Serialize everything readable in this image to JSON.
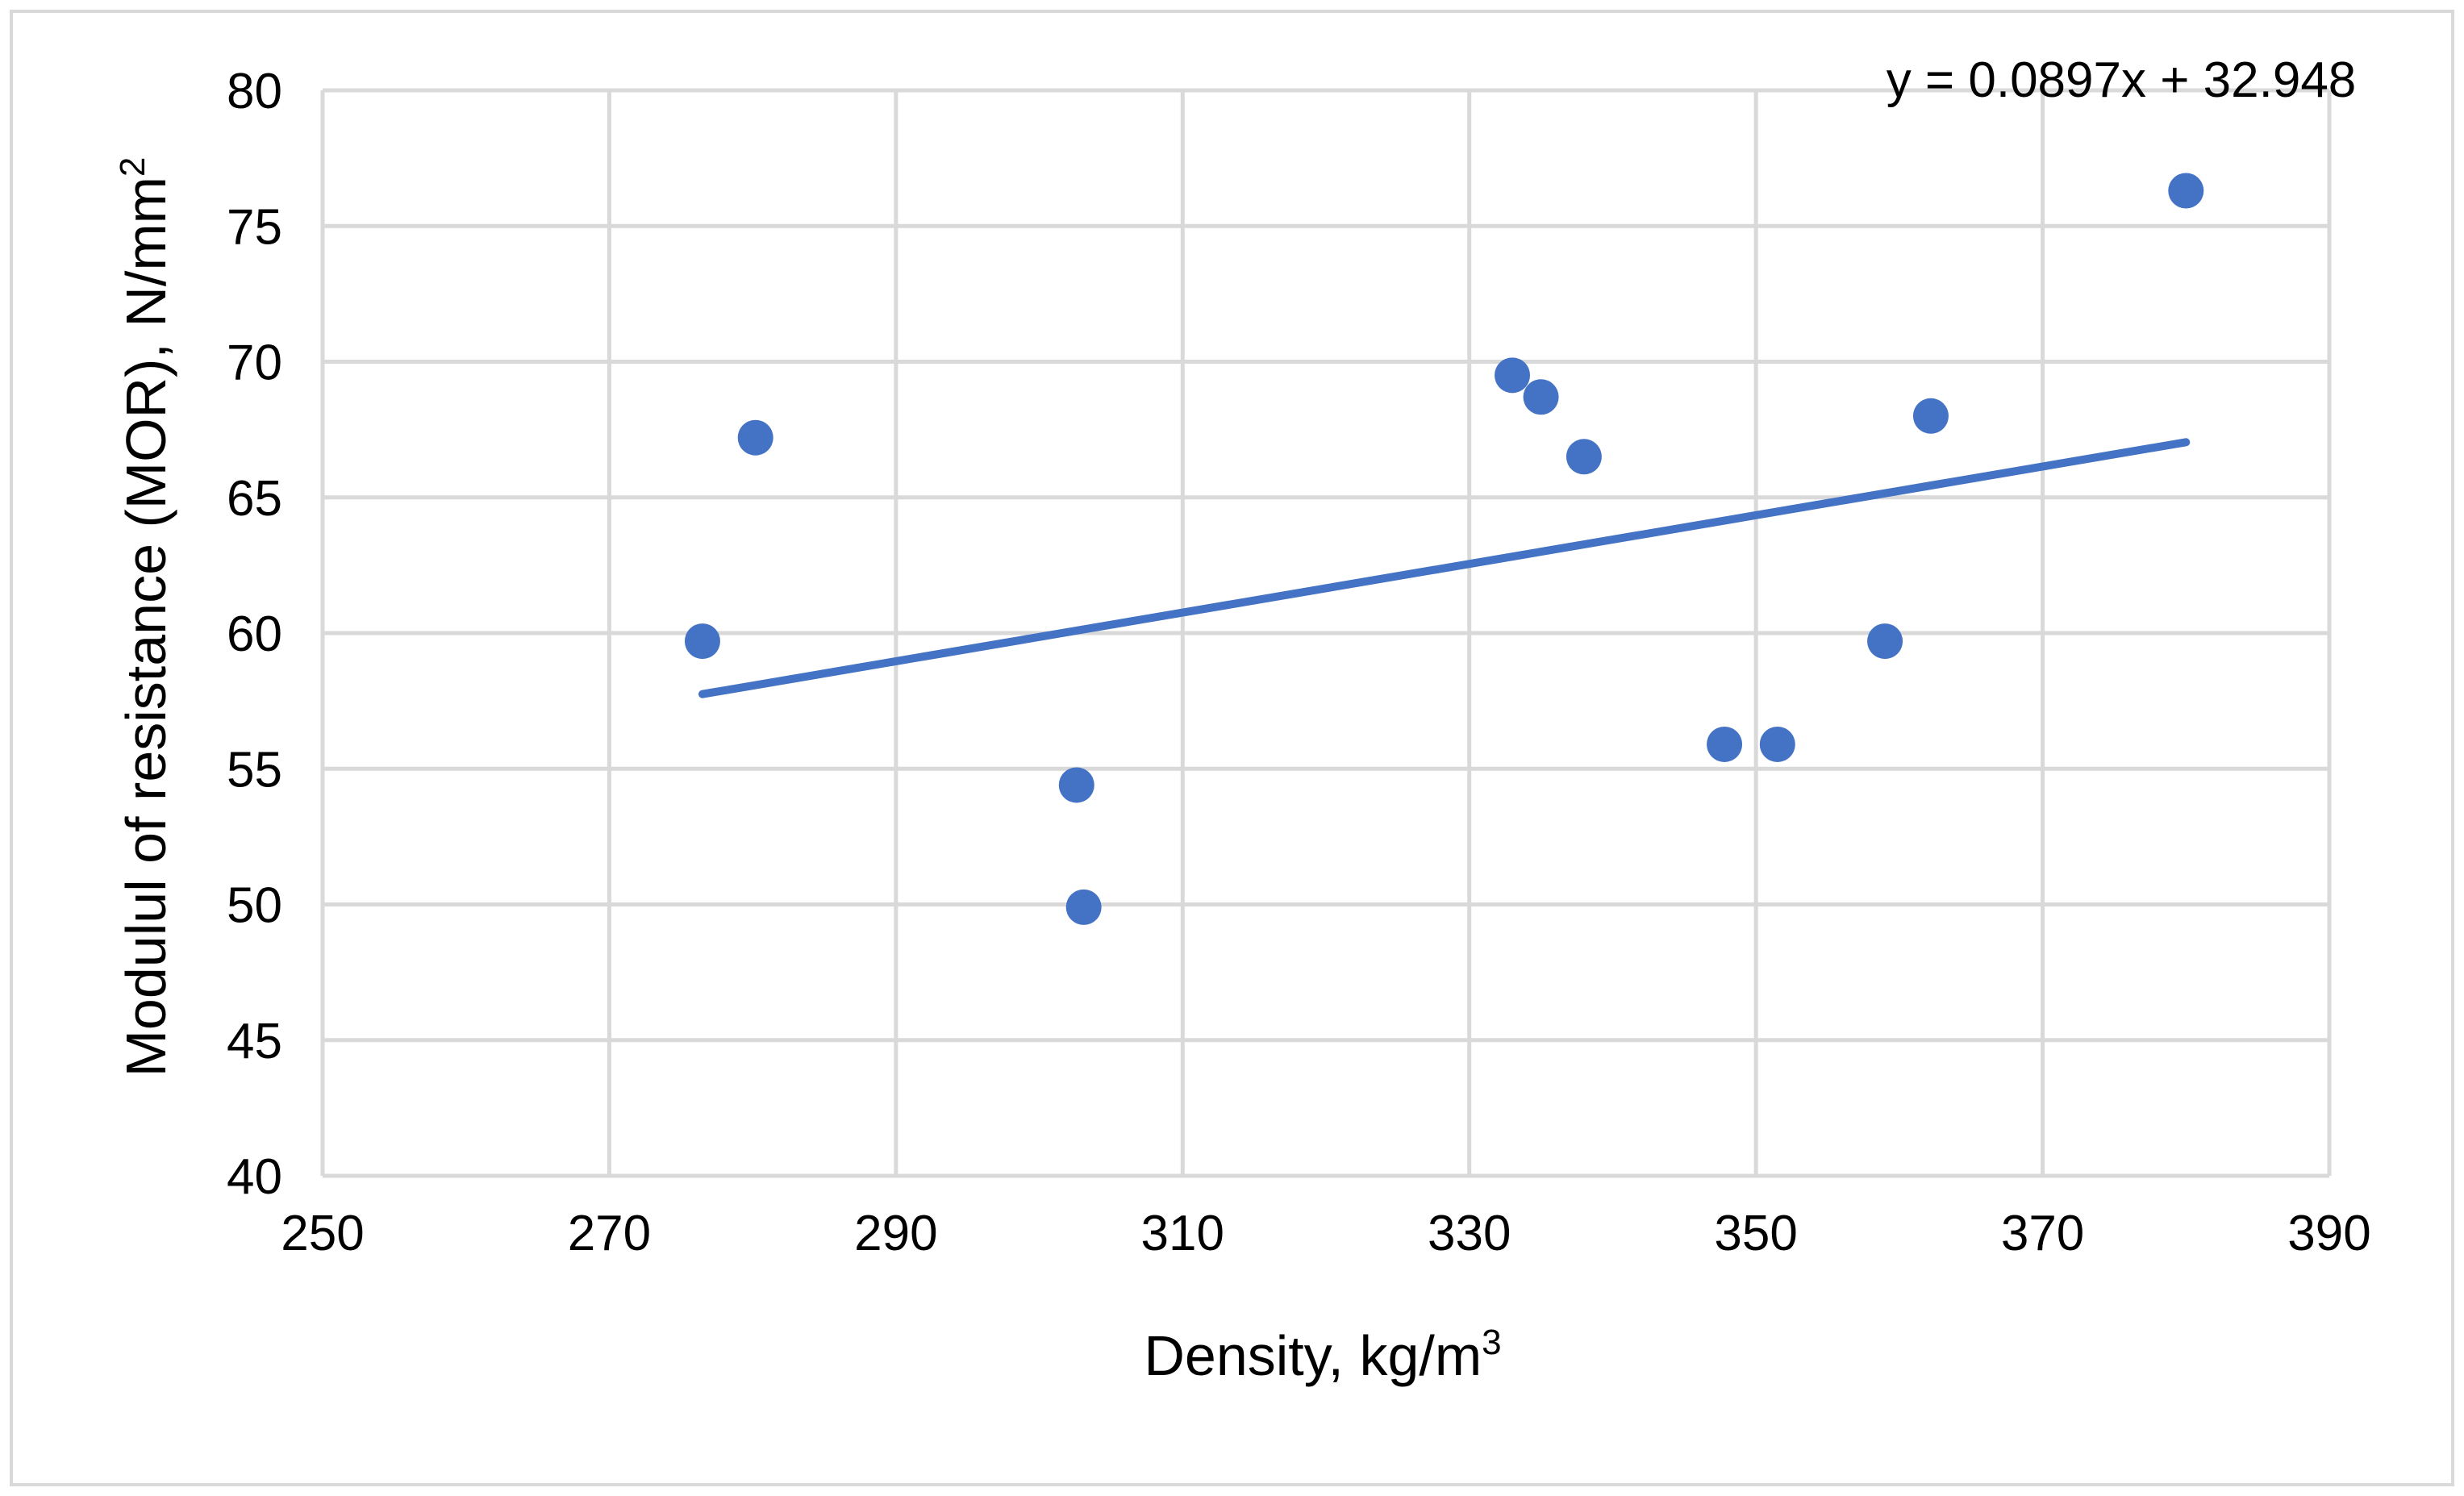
{
  "chart_data": {
    "type": "scatter",
    "title": "",
    "xlabel": "Density, kg/m",
    "xlabel_sup": "3",
    "ylabel": "Modulul of resistance (MOR), N/mm",
    "ylabel_sup": "2",
    "xlim": [
      250,
      390
    ],
    "ylim": [
      40,
      80
    ],
    "x_ticks": [
      250,
      270,
      290,
      310,
      330,
      350,
      370,
      390
    ],
    "y_ticks": [
      40,
      45,
      50,
      55,
      60,
      65,
      70,
      75,
      80
    ],
    "grid": true,
    "legend": "none",
    "series": [
      {
        "name": "MOR",
        "color": "#4472c4",
        "points": [
          {
            "x": 276.5,
            "y": 59.7
          },
          {
            "x": 280.2,
            "y": 67.2
          },
          {
            "x": 302.6,
            "y": 54.4
          },
          {
            "x": 303.1,
            "y": 49.9
          },
          {
            "x": 333.0,
            "y": 69.5
          },
          {
            "x": 335.0,
            "y": 68.7
          },
          {
            "x": 338.0,
            "y": 66.5
          },
          {
            "x": 347.8,
            "y": 55.9
          },
          {
            "x": 351.5,
            "y": 55.9
          },
          {
            "x": 359.0,
            "y": 59.7
          },
          {
            "x": 362.2,
            "y": 68.0
          },
          {
            "x": 380.0,
            "y": 76.3
          }
        ]
      }
    ],
    "trendline": {
      "type": "linear",
      "slope": 0.0897,
      "intercept": 32.948,
      "x_start": 276.5,
      "x_end": 380.0,
      "color": "#4472c4",
      "equation_label": "y = 0.0897x + 32.948"
    }
  }
}
